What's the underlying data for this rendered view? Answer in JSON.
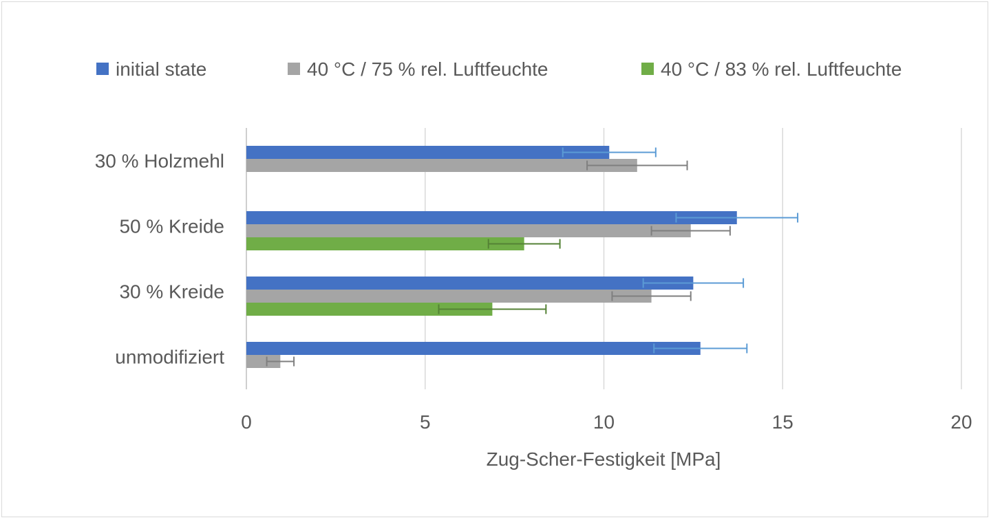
{
  "chart_data": {
    "type": "bar",
    "orientation": "horizontal",
    "title": "",
    "xlabel": "Zug-Scher-Festigkeit [MPa]",
    "ylabel": "",
    "xlim": [
      0,
      20
    ],
    "xticks": [
      "0",
      "5",
      "10",
      "15",
      "20"
    ],
    "grid": true,
    "legend_position": "top",
    "categories": [
      "30 % Holzmehl",
      "50 % Kreide",
      "30 % Kreide",
      "unmodifiziert"
    ],
    "series": [
      {
        "name": "initial state",
        "color": "#4472C4",
        "error_color": "#5B9BD5",
        "values": [
          10.15,
          13.72,
          12.5,
          12.7
        ],
        "errors": [
          1.3,
          1.7,
          1.4,
          1.3
        ]
      },
      {
        "name": "40 °C / 75 % rel. Luftfeuchte",
        "color": "#A5A5A5",
        "error_color": "#7F7F7F",
        "values": [
          10.93,
          12.43,
          11.33,
          0.95
        ],
        "errors": [
          1.4,
          1.1,
          1.1,
          0.38
        ]
      },
      {
        "name": "40 °C / 83 % rel. Luftfeuchte",
        "color": "#70AD47",
        "error_color": "#548235",
        "values": [
          null,
          7.77,
          6.88,
          null
        ],
        "errors": [
          null,
          1.0,
          1.5,
          null
        ]
      }
    ]
  }
}
